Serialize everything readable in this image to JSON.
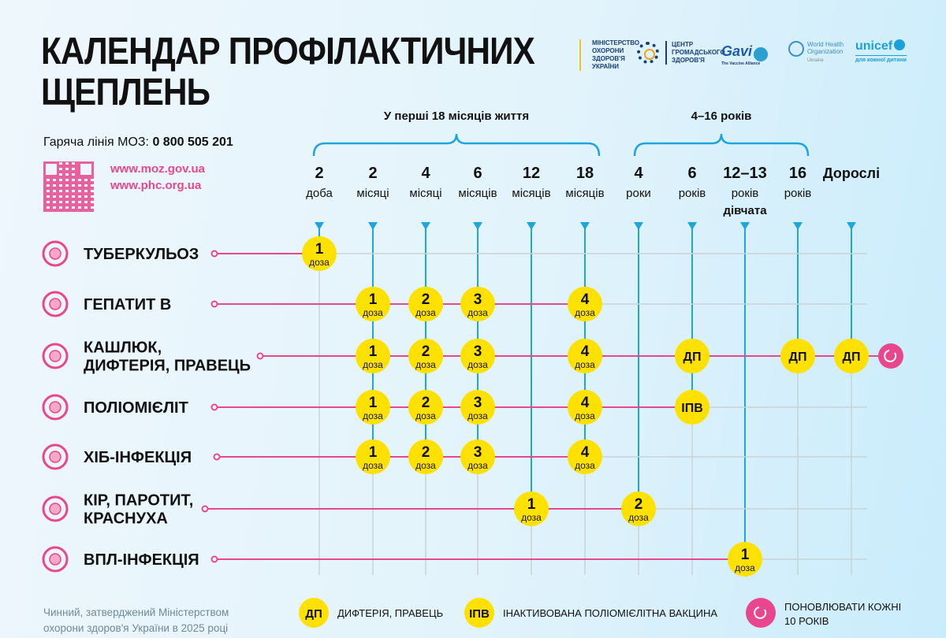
{
  "title_line1": "КАЛЕНДАР ПРОФІЛАКТИЧНИХ",
  "title_line2": "ЩЕПЛЕНЬ",
  "hotline_label": "Гаряча лінія МОЗ:",
  "hotline_number": "0 800 505 201",
  "links": [
    "www.moz.gov.ua",
    "www.phc.org.ua"
  ],
  "logos": {
    "moz": [
      "МІНІСТЕРСТВО",
      "ОХОРОНИ",
      "ЗДОРОВ'Я",
      "УКРАЇНИ"
    ],
    "phc": [
      "ЦЕНТР",
      "ГРОМАДСЬКОГО",
      "ЗДОРОВ'Я"
    ],
    "gavi": "Gavi",
    "gavi_sub": "The Vaccine Alliance",
    "who": [
      "World Health",
      "Organization"
    ],
    "who_sub": "Ukraine",
    "unicef": "unicef",
    "unicef_sub": "для кожної дитини"
  },
  "groups": [
    {
      "label": "У перші 18 місяців життя"
    },
    {
      "label": "4–16 років"
    }
  ],
  "columns": [
    {
      "num": "2",
      "unit": "доба"
    },
    {
      "num": "2",
      "unit": "місяці"
    },
    {
      "num": "4",
      "unit": "місяці"
    },
    {
      "num": "6",
      "unit": "місяців"
    },
    {
      "num": "12",
      "unit": "місяців"
    },
    {
      "num": "18",
      "unit": "місяців"
    },
    {
      "num": "4",
      "unit": "роки"
    },
    {
      "num": "6",
      "unit": "років"
    },
    {
      "num": "12–13",
      "unit": "років",
      "extra": "дівчата"
    },
    {
      "num": "16",
      "unit": "років"
    },
    {
      "num": "Дорослі",
      "unit": ""
    }
  ],
  "dose_word": "доза",
  "rows": [
    {
      "name": [
        "ТУБЕРКУЛЬОЗ"
      ],
      "doses": [
        {
          "col": 0,
          "label": "1"
        }
      ]
    },
    {
      "name": [
        "ГЕПАТИТ В"
      ],
      "doses": [
        {
          "col": 1,
          "label": "1"
        },
        {
          "col": 2,
          "label": "2"
        },
        {
          "col": 3,
          "label": "3"
        },
        {
          "col": 5,
          "label": "4"
        }
      ]
    },
    {
      "name": [
        "КАШЛЮК,",
        "ДИФТЕРІЯ, ПРАВЕЦЬ"
      ],
      "doses": [
        {
          "col": 1,
          "label": "1"
        },
        {
          "col": 2,
          "label": "2"
        },
        {
          "col": 3,
          "label": "3"
        },
        {
          "col": 5,
          "label": "4"
        },
        {
          "col": 7,
          "label": "ДП",
          "abbr": true
        },
        {
          "col": 9,
          "label": "ДП",
          "abbr": true
        },
        {
          "col": 10,
          "label": "ДП",
          "abbr": true
        }
      ],
      "refresh": true
    },
    {
      "name": [
        "ПОЛІОМІЄЛІТ"
      ],
      "doses": [
        {
          "col": 1,
          "label": "1"
        },
        {
          "col": 2,
          "label": "2"
        },
        {
          "col": 3,
          "label": "3"
        },
        {
          "col": 5,
          "label": "4"
        },
        {
          "col": 7,
          "label": "ІПВ",
          "abbr": true
        }
      ]
    },
    {
      "name": [
        "ХІБ-ІНФЕКЦІЯ"
      ],
      "doses": [
        {
          "col": 1,
          "label": "1"
        },
        {
          "col": 2,
          "label": "2"
        },
        {
          "col": 3,
          "label": "3"
        },
        {
          "col": 5,
          "label": "4"
        }
      ]
    },
    {
      "name": [
        "КІР, ПАРОТИТ,",
        "КРАСНУХА"
      ],
      "doses": [
        {
          "col": 4,
          "label": "1"
        },
        {
          "col": 6,
          "label": "2"
        }
      ]
    },
    {
      "name": [
        "ВПЛ-ІНФЕКЦІЯ"
      ],
      "doses": [
        {
          "col": 8,
          "label": "1"
        }
      ]
    }
  ],
  "legend": [
    {
      "badge": "ДП",
      "text": [
        "ДИФТЕРІЯ, ПРАВЕЦЬ"
      ]
    },
    {
      "badge": "ІПВ",
      "text": [
        "ІНАКТИВОВАНА ПОЛІОМІЄЛІТНА ВАКЦИНА"
      ]
    },
    {
      "icon": "refresh-icon",
      "text": [
        "ПОНОВЛЮВАТИ КОЖНІ",
        "10 РОКІВ"
      ]
    }
  ],
  "footnote": [
    "Чинний, затверджений Міністерством",
    "охорони здоров'я України в 2025 році"
  ],
  "colors": {
    "pink": "#e8478e",
    "blue": "#1ea5dc",
    "yellow": "#ffe100",
    "grey": "#c9d3d8"
  }
}
